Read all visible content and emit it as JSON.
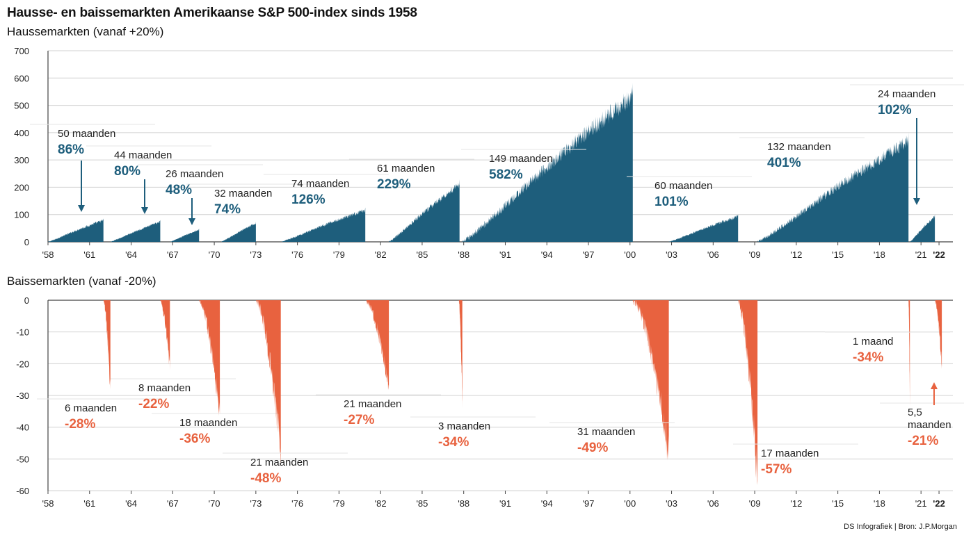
{
  "title": "Hausse- en baissemarkten Amerikaanse S&P 500-index sinds 1958",
  "source": "DS Infografiek | Bron: J.P.Morgan",
  "colors": {
    "bull": "#1e5e7c",
    "bear": "#e8623f",
    "grid": "#d0d0d0",
    "axis": "#444444"
  },
  "chart_data": [
    {
      "type": "area",
      "subtitle": "Haussemarkten (vanaf +20%)",
      "ylim": [
        0,
        700
      ],
      "yticks": [
        "0",
        "100",
        "200",
        "300",
        "400",
        "500",
        "600",
        "700"
      ],
      "xlim": [
        1958,
        2023.3
      ],
      "xticks": [
        "'58",
        "'61",
        "'64",
        "'67",
        "'70",
        "'73",
        "'76",
        "'79",
        "'82",
        "'85",
        "'88",
        "'91",
        "'94",
        "'97",
        "'00",
        "'03",
        "'06",
        "'09",
        "'12",
        "'15",
        "'18",
        "'21",
        "'22"
      ],
      "series": [
        {
          "start": 1958.0,
          "end": 1962.0,
          "months": "50 maanden",
          "peak": "86%",
          "peak_value": 86
        },
        {
          "start": 1962.5,
          "end": 1966.1,
          "months": "44 maanden",
          "peak": "80%",
          "peak_value": 80
        },
        {
          "start": 1966.8,
          "end": 1968.9,
          "months": "26 maanden",
          "peak": "48%",
          "peak_value": 48
        },
        {
          "start": 1970.5,
          "end": 1973.0,
          "months": "32 maanden",
          "peak": "74%",
          "peak_value": 74
        },
        {
          "start": 1974.8,
          "end": 1980.9,
          "months": "74 maanden",
          "peak": "126%",
          "peak_value": 126
        },
        {
          "start": 1982.6,
          "end": 1987.7,
          "months": "61 maanden",
          "peak": "229%",
          "peak_value": 229
        },
        {
          "start": 1987.9,
          "end": 2000.2,
          "months": "149 maanden",
          "peak": "582%",
          "peak_value": 582
        },
        {
          "start": 2002.8,
          "end": 2007.8,
          "months": "60 maanden",
          "peak": "101%",
          "peak_value": 101
        },
        {
          "start": 2009.2,
          "end": 2020.1,
          "months": "132 maanden",
          "peak": "401%",
          "peak_value": 401
        },
        {
          "start": 2020.2,
          "end": 2022.0,
          "months": "24 maanden",
          "peak": "102%",
          "peak_value": 102
        }
      ]
    },
    {
      "type": "area",
      "subtitle": "Baissemarkten (vanaf -20%)",
      "ylim": [
        -60,
        0
      ],
      "yticks": [
        "0",
        "-10",
        "-20",
        "-30",
        "-40",
        "-50",
        "-60"
      ],
      "xlim": [
        1958,
        2023.3
      ],
      "xticks": [
        "'58",
        "'61",
        "'64",
        "'67",
        "'70",
        "'73",
        "'76",
        "'79",
        "'82",
        "'85",
        "'88",
        "'91",
        "'94",
        "'97",
        "'00",
        "'03",
        "'06",
        "'09",
        "'12",
        "'15",
        "'18",
        "'21",
        "'22"
      ],
      "series": [
        {
          "start": 1962.0,
          "end": 1962.5,
          "months": "6 maanden",
          "trough": "-28%",
          "trough_value": -28
        },
        {
          "start": 1966.1,
          "end": 1966.8,
          "months": "8 maanden",
          "trough": "-22%",
          "trough_value": -22
        },
        {
          "start": 1968.9,
          "end": 1970.4,
          "months": "18 maanden",
          "trough": "-36%",
          "trough_value": -36
        },
        {
          "start": 1973.0,
          "end": 1974.8,
          "months": "21 maanden",
          "trough": "-48%",
          "trough_value": -48
        },
        {
          "start": 1980.9,
          "end": 1982.6,
          "months": "21 maanden",
          "trough": "-27%",
          "trough_value": -27
        },
        {
          "start": 1987.65,
          "end": 1987.9,
          "months": "3 maanden",
          "trough": "-34%",
          "trough_value": -34
        },
        {
          "start": 2000.2,
          "end": 2002.8,
          "months": "31 maanden",
          "trough": "-49%",
          "trough_value": -49
        },
        {
          "start": 2007.8,
          "end": 2009.2,
          "months": "17 maanden",
          "trough": "-57%",
          "trough_value": -57
        },
        {
          "start": 2020.1,
          "end": 2020.2,
          "months": "1 maand",
          "trough": "-34%",
          "trough_value": -34
        },
        {
          "start": 2022.0,
          "end": 2022.5,
          "months": "5,5 maanden",
          "trough": "-21%",
          "trough_value": -21
        }
      ]
    }
  ]
}
